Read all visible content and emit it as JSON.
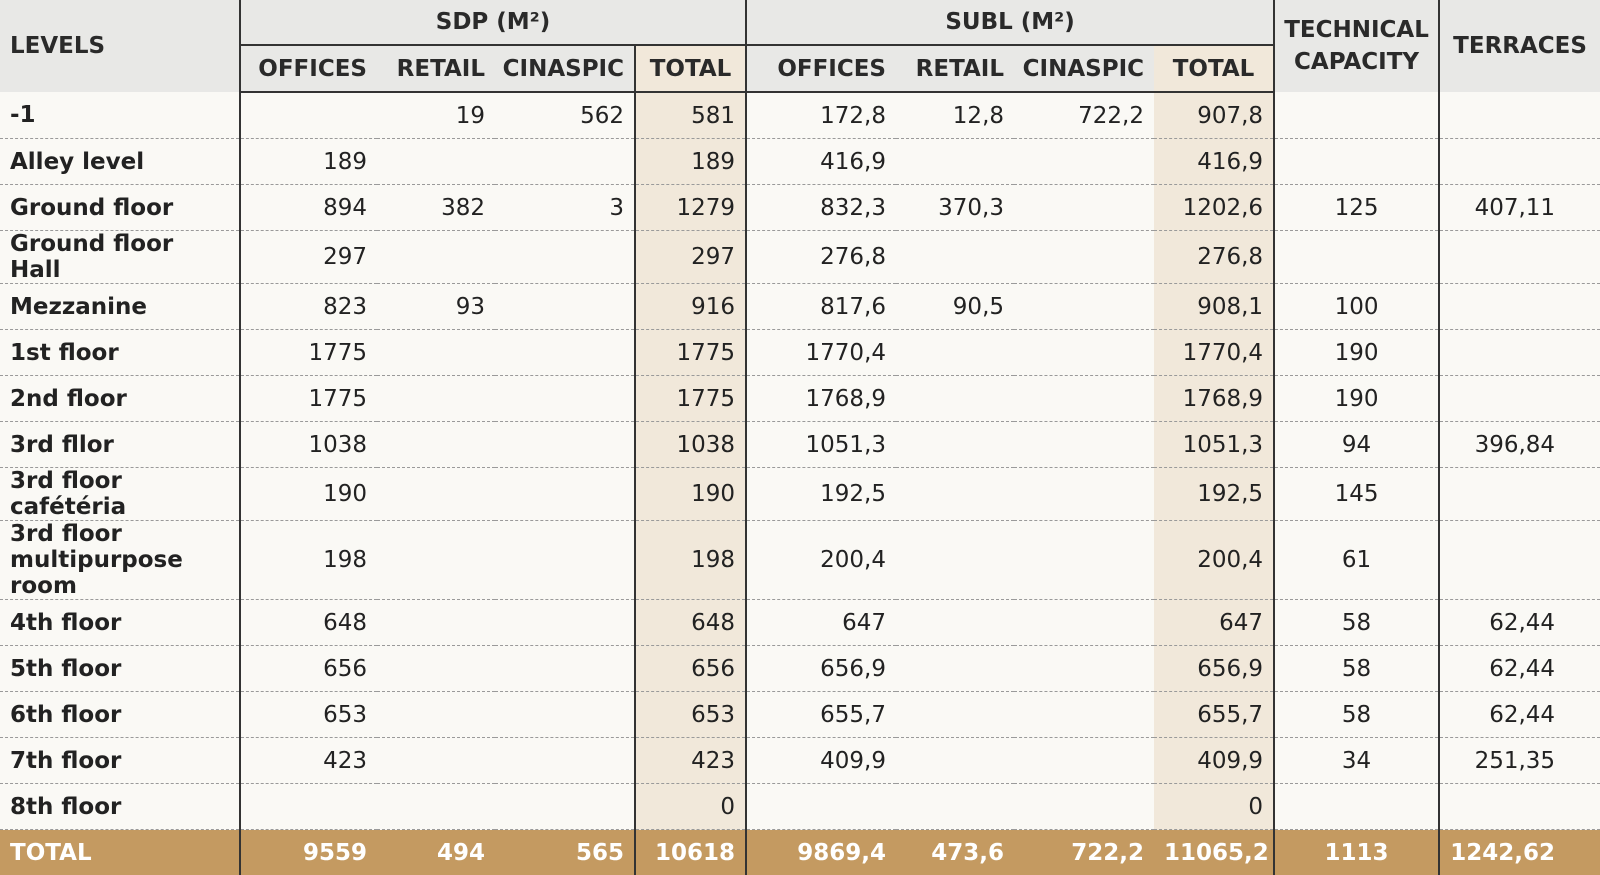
{
  "header": {
    "levels": "LEVELS",
    "sdp": "SDP (M²)",
    "subl": "SUBL (M²)",
    "technical_capacity": "TECHNICAL CAPACITY",
    "terraces": "TERRACES",
    "offices": "OFFICES",
    "retail": "RETAIL",
    "cinaspic": "CINASPIC",
    "total": "TOTAL"
  },
  "rows": [
    {
      "level": "-1",
      "sdp_offices": "",
      "sdp_retail": "19",
      "sdp_cinaspic": "562",
      "sdp_total": "581",
      "subl_offices": "172,8",
      "subl_retail": "12,8",
      "subl_cinaspic": "722,2",
      "subl_total": "907,8",
      "technical_capacity": "",
      "terraces": ""
    },
    {
      "level": "Alley level",
      "sdp_offices": "189",
      "sdp_retail": "",
      "sdp_cinaspic": "",
      "sdp_total": "189",
      "subl_offices": "416,9",
      "subl_retail": "",
      "subl_cinaspic": "",
      "subl_total": "416,9",
      "technical_capacity": "",
      "terraces": ""
    },
    {
      "level": "Ground floor",
      "sdp_offices": "894",
      "sdp_retail": "382",
      "sdp_cinaspic": "3",
      "sdp_total": "1279",
      "subl_offices": "832,3",
      "subl_retail": "370,3",
      "subl_cinaspic": "",
      "subl_total": "1202,6",
      "technical_capacity": "125",
      "terraces": "407,11"
    },
    {
      "level": "Ground floor Hall",
      "sdp_offices": "297",
      "sdp_retail": "",
      "sdp_cinaspic": "",
      "sdp_total": "297",
      "subl_offices": "276,8",
      "subl_retail": "",
      "subl_cinaspic": "",
      "subl_total": "276,8",
      "technical_capacity": "",
      "terraces": ""
    },
    {
      "level": "Mezzanine",
      "sdp_offices": "823",
      "sdp_retail": "93",
      "sdp_cinaspic": "",
      "sdp_total": "916",
      "subl_offices": "817,6",
      "subl_retail": "90,5",
      "subl_cinaspic": "",
      "subl_total": "908,1",
      "technical_capacity": "100",
      "terraces": ""
    },
    {
      "level": "1st floor",
      "sdp_offices": "1775",
      "sdp_retail": "",
      "sdp_cinaspic": "",
      "sdp_total": "1775",
      "subl_offices": "1770,4",
      "subl_retail": "",
      "subl_cinaspic": "",
      "subl_total": "1770,4",
      "technical_capacity": "190",
      "terraces": ""
    },
    {
      "level": "2nd floor",
      "sdp_offices": "1775",
      "sdp_retail": "",
      "sdp_cinaspic": "",
      "sdp_total": "1775",
      "subl_offices": "1768,9",
      "subl_retail": "",
      "subl_cinaspic": "",
      "subl_total": "1768,9",
      "technical_capacity": "190",
      "terraces": ""
    },
    {
      "level": "3rd fllor",
      "sdp_offices": "1038",
      "sdp_retail": "",
      "sdp_cinaspic": "",
      "sdp_total": "1038",
      "subl_offices": "1051,3",
      "subl_retail": "",
      "subl_cinaspic": "",
      "subl_total": "1051,3",
      "technical_capacity": "94",
      "terraces": "396,84"
    },
    {
      "level": "3rd floor cafétéria",
      "sdp_offices": "190",
      "sdp_retail": "",
      "sdp_cinaspic": "",
      "sdp_total": "190",
      "subl_offices": "192,5",
      "subl_retail": "",
      "subl_cinaspic": "",
      "subl_total": "192,5",
      "technical_capacity": "145",
      "terraces": ""
    },
    {
      "level": "3rd floor multipurpose room",
      "sdp_offices": "198",
      "sdp_retail": "",
      "sdp_cinaspic": "",
      "sdp_total": "198",
      "subl_offices": "200,4",
      "subl_retail": "",
      "subl_cinaspic": "",
      "subl_total": "200,4",
      "technical_capacity": "61",
      "terraces": ""
    },
    {
      "level": "4th floor",
      "sdp_offices": "648",
      "sdp_retail": "",
      "sdp_cinaspic": "",
      "sdp_total": "648",
      "subl_offices": "647",
      "subl_retail": "",
      "subl_cinaspic": "",
      "subl_total": "647",
      "technical_capacity": "58",
      "terraces": "62,44"
    },
    {
      "level": "5th floor",
      "sdp_offices": "656",
      "sdp_retail": "",
      "sdp_cinaspic": "",
      "sdp_total": "656",
      "subl_offices": "656,9",
      "subl_retail": "",
      "subl_cinaspic": "",
      "subl_total": "656,9",
      "technical_capacity": "58",
      "terraces": "62,44"
    },
    {
      "level": "6th floor",
      "sdp_offices": "653",
      "sdp_retail": "",
      "sdp_cinaspic": "",
      "sdp_total": "653",
      "subl_offices": "655,7",
      "subl_retail": "",
      "subl_cinaspic": "",
      "subl_total": "655,7",
      "technical_capacity": "58",
      "terraces": "62,44"
    },
    {
      "level": "7th floor",
      "sdp_offices": "423",
      "sdp_retail": "",
      "sdp_cinaspic": "",
      "sdp_total": "423",
      "subl_offices": "409,9",
      "subl_retail": "",
      "subl_cinaspic": "",
      "subl_total": "409,9",
      "technical_capacity": "34",
      "terraces": "251,35"
    },
    {
      "level": "8th floor",
      "sdp_offices": "",
      "sdp_retail": "",
      "sdp_cinaspic": "",
      "sdp_total": "0",
      "subl_offices": "",
      "subl_retail": "",
      "subl_cinaspic": "",
      "subl_total": "0",
      "technical_capacity": "",
      "terraces": ""
    }
  ],
  "total": {
    "level": "TOTAL",
    "sdp_offices": "9559",
    "sdp_retail": "494",
    "sdp_cinaspic": "565",
    "sdp_total": "10618",
    "subl_offices": "9869,4",
    "subl_retail": "473,6",
    "subl_cinaspic": "722,2",
    "subl_total": "11065,2",
    "technical_capacity": "1113",
    "terraces": "1242,62"
  },
  "colors": {
    "header_bg": "#e8e8e6",
    "total_col_bg": "#f1e8da",
    "footer_bg": "#c49a61"
  }
}
